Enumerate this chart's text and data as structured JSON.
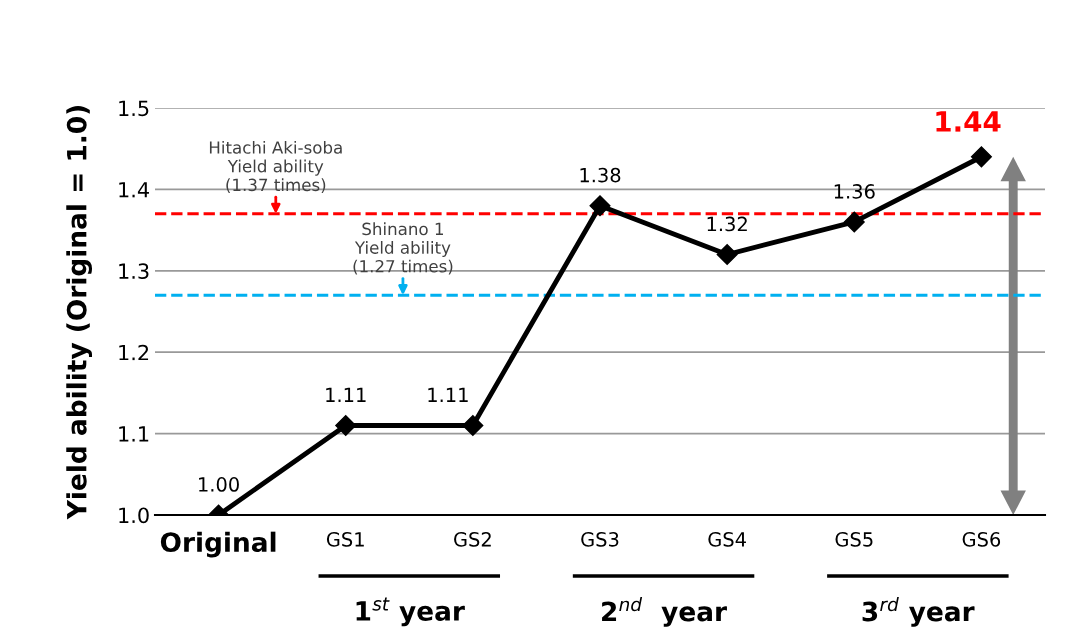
{
  "chart_data": {
    "type": "line",
    "ylabel": "Yield ability (Original = 1.0)",
    "categories": [
      "Original",
      "GS1",
      "GS2",
      "GS3",
      "GS4",
      "GS5",
      "GS6"
    ],
    "values": [
      1.0,
      1.11,
      1.11,
      1.38,
      1.32,
      1.36,
      1.44
    ],
    "color": "#000000",
    "marker": "diamond",
    "line_style": "solid",
    "ylim": [
      1.0,
      1.5
    ],
    "yticks": [
      {
        "value": 1.0,
        "label": "1.0"
      },
      1.1,
      1.2,
      1.3,
      1.4,
      1.5
    ],
    "value_labels": [
      "1.00",
      "1.11",
      "1.11",
      "1.38",
      "1.32",
      "1.36",
      "1.44"
    ],
    "grid": "y",
    "ref_lines": [
      {
        "axis": "y",
        "value": 1.37,
        "label": "Hitachi Aki-soba\nYield ability\n(1.37 times)",
        "color": "#ff0000",
        "line_style": "dashed"
      },
      {
        "axis": "y",
        "value": 1.27,
        "label": "Shinano 1\nYield ability\n(1.27 times)",
        "color": "#00b0f0",
        "line_style": "dashed"
      }
    ],
    "annotations": [
      "1$^{st}$ year",
      "2$^{nd}$  year",
      "3$^{rd}$ year"
    ]
  }
}
